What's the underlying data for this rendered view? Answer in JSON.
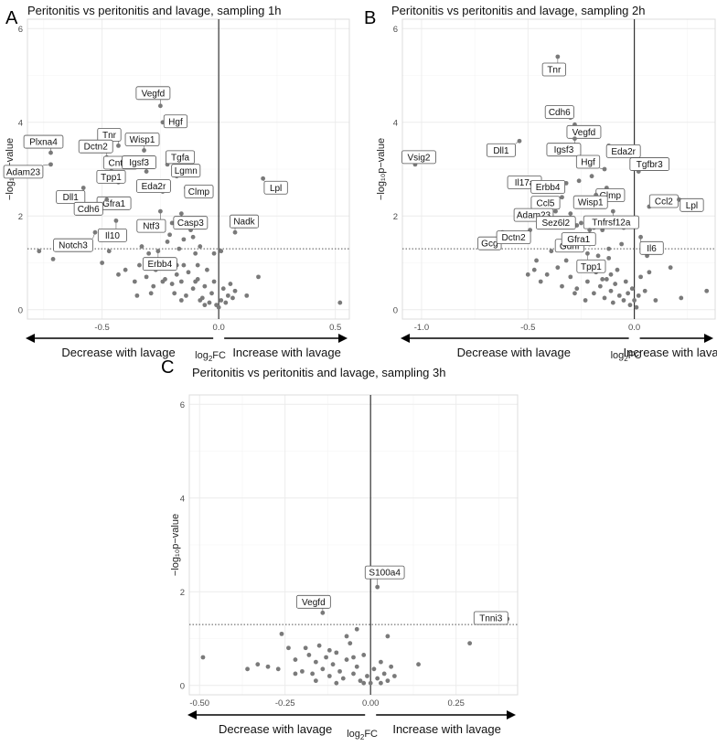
{
  "chart_data": [
    {
      "panel": "A",
      "type": "scatter",
      "title": "Peritonitis vs peritonitis and lavage, sampling 1h",
      "xlabel_main": "log",
      "xlabel_sub": "2",
      "xlabel_tail": "FC",
      "ylabel": "−log₁₀p−value",
      "xlim": [
        -0.82,
        0.56
      ],
      "ylim": [
        -0.2,
        6.2
      ],
      "x_ticks": [
        -0.5,
        0.0,
        0.5
      ],
      "x_tick_labels": [
        "-0.5",
        "0.0",
        "0.5"
      ],
      "y_ticks": [
        0,
        2,
        4,
        6
      ],
      "y_tick_labels": [
        "0",
        "2",
        "4",
        "6"
      ],
      "threshold": 1.3,
      "left_arrow_label": "Decrease with lavage",
      "right_arrow_label": "Increase with lavage",
      "labeled": [
        {
          "name": "Vegfd",
          "x": -0.25,
          "y": 4.35
        },
        {
          "name": "Hgf",
          "x": -0.24,
          "y": 4.0
        },
        {
          "name": "Tnr",
          "x": -0.43,
          "y": 3.5
        },
        {
          "name": "Wisp1",
          "x": -0.32,
          "y": 3.4
        },
        {
          "name": "Plxna4",
          "x": -0.72,
          "y": 3.35
        },
        {
          "name": "Dctn2",
          "x": -0.48,
          "y": 3.25
        },
        {
          "name": "Tgfa",
          "x": -0.22,
          "y": 3.1
        },
        {
          "name": "Adam23",
          "x": -0.72,
          "y": 3.1
        },
        {
          "name": "Cntn4",
          "x": -0.46,
          "y": 3.02
        },
        {
          "name": "Igsf3",
          "x": -0.31,
          "y": 2.95
        },
        {
          "name": "Lgmn",
          "x": -0.18,
          "y": 2.85
        },
        {
          "name": "Lpl",
          "x": 0.19,
          "y": 2.8
        },
        {
          "name": "Tpp1",
          "x": -0.43,
          "y": 2.72
        },
        {
          "name": "Dll1",
          "x": -0.58,
          "y": 2.6
        },
        {
          "name": "Clmp",
          "x": -0.14,
          "y": 2.6
        },
        {
          "name": "Eda2r",
          "x": -0.24,
          "y": 2.52
        },
        {
          "name": "Gfra1",
          "x": -0.41,
          "y": 2.35
        },
        {
          "name": "Cdh6",
          "x": -0.48,
          "y": 2.35
        },
        {
          "name": "Ntf3",
          "x": -0.25,
          "y": 2.1
        },
        {
          "name": "Casp3",
          "x": -0.16,
          "y": 2.05
        },
        {
          "name": "Il10",
          "x": -0.44,
          "y": 1.9
        },
        {
          "name": "Nadk",
          "x": 0.07,
          "y": 1.65
        },
        {
          "name": "Notch3",
          "x": -0.53,
          "y": 1.65
        },
        {
          "name": "Erbb4",
          "x": -0.26,
          "y": 1.25
        }
      ],
      "points": [
        [
          -0.77,
          1.25
        ],
        [
          -0.71,
          1.08
        ],
        [
          -0.5,
          1.0
        ],
        [
          -0.47,
          1.25
        ],
        [
          -0.43,
          0.75
        ],
        [
          -0.4,
          0.85
        ],
        [
          -0.36,
          0.6
        ],
        [
          -0.34,
          0.95
        ],
        [
          -0.31,
          0.7
        ],
        [
          -0.3,
          1.2
        ],
        [
          -0.28,
          0.5
        ],
        [
          -0.27,
          0.85
        ],
        [
          -0.25,
          1.05
        ],
        [
          -0.23,
          0.65
        ],
        [
          -0.22,
          1.45
        ],
        [
          -0.21,
          1.6
        ],
        [
          -0.2,
          0.55
        ],
        [
          -0.19,
          0.35
        ],
        [
          -0.18,
          0.95
        ],
        [
          -0.17,
          1.3
        ],
        [
          -0.16,
          0.6
        ],
        [
          -0.15,
          1.5
        ],
        [
          -0.14,
          0.3
        ],
        [
          -0.13,
          0.8
        ],
        [
          -0.12,
          1.7
        ],
        [
          -0.11,
          0.45
        ],
        [
          -0.1,
          1.2
        ],
        [
          -0.09,
          0.65
        ],
        [
          -0.08,
          1.35
        ],
        [
          -0.07,
          0.25
        ],
        [
          -0.06,
          0.5
        ],
        [
          -0.05,
          0.85
        ],
        [
          -0.04,
          0.15
        ],
        [
          -0.03,
          0.35
        ],
        [
          -0.02,
          0.6
        ],
        [
          -0.01,
          0.1
        ],
        [
          0.0,
          0.05
        ],
        [
          0.01,
          0.2
        ],
        [
          0.02,
          0.45
        ],
        [
          0.03,
          0.15
        ],
        [
          0.04,
          0.3
        ],
        [
          0.05,
          0.55
        ],
        [
          0.06,
          0.25
        ],
        [
          0.07,
          0.4
        ],
        [
          0.12,
          0.3
        ],
        [
          0.17,
          0.7
        ],
        [
          0.52,
          0.15
        ],
        [
          -0.2,
          1.85
        ],
        [
          -0.15,
          0.95
        ],
        [
          -0.13,
          1.95
        ],
        [
          -0.26,
          0.95
        ],
        [
          -0.33,
          1.35
        ],
        [
          -0.11,
          1.55
        ],
        [
          -0.09,
          0.95
        ],
        [
          -0.02,
          1.2
        ],
        [
          0.01,
          1.25
        ],
        [
          -0.24,
          0.6
        ],
        [
          -0.18,
          0.75
        ],
        [
          -0.16,
          0.2
        ],
        [
          -0.1,
          0.6
        ],
        [
          -0.35,
          0.3
        ],
        [
          -0.29,
          0.35
        ],
        [
          -0.06,
          0.1
        ],
        [
          -0.08,
          0.2
        ]
      ]
    },
    {
      "panel": "B",
      "type": "scatter",
      "title": "Peritonitis vs peritonitis and lavage, sampling 2h",
      "xlabel_main": "log",
      "xlabel_sub": "2",
      "xlabel_tail": "FC",
      "ylabel": "−log₁₀p−value",
      "xlim": [
        -1.09,
        0.38
      ],
      "ylim": [
        -0.2,
        6.2
      ],
      "x_ticks": [
        -1.0,
        -0.5,
        0.0
      ],
      "x_tick_labels": [
        "-1.0",
        "-0.5",
        "0.0"
      ],
      "y_ticks": [
        0,
        2,
        4,
        6
      ],
      "y_tick_labels": [
        "0",
        "2",
        "4",
        "6"
      ],
      "threshold": 1.3,
      "left_arrow_label": "Decrease with lavage",
      "right_arrow_label": "Increase with lavage",
      "labeled": [
        {
          "name": "Tnr",
          "x": -0.36,
          "y": 5.4
        },
        {
          "name": "Cdh6",
          "x": -0.3,
          "y": 4.1
        },
        {
          "name": "Vegfd",
          "x": -0.28,
          "y": 3.95
        },
        {
          "name": "Dll1",
          "x": -0.54,
          "y": 3.6
        },
        {
          "name": "Igsf3",
          "x": -0.28,
          "y": 3.65
        },
        {
          "name": "Eda2r",
          "x": -0.12,
          "y": 3.5
        },
        {
          "name": "Vsig2",
          "x": -1.03,
          "y": 3.1
        },
        {
          "name": "Hgf",
          "x": -0.14,
          "y": 3.0
        },
        {
          "name": "Tgfbr3",
          "x": 0.02,
          "y": 2.95
        },
        {
          "name": "Il17a",
          "x": -0.43,
          "y": 2.6
        },
        {
          "name": "Erbb4",
          "x": -0.32,
          "y": 2.7
        },
        {
          "name": "Clmp",
          "x": -0.13,
          "y": 2.6
        },
        {
          "name": "Ccl5",
          "x": -0.34,
          "y": 2.4
        },
        {
          "name": "Wisp1",
          "x": -0.18,
          "y": 2.45
        },
        {
          "name": "Ccl2",
          "x": 0.07,
          "y": 2.2
        },
        {
          "name": "Lpl",
          "x": 0.21,
          "y": 2.35
        },
        {
          "name": "Adam23",
          "x": -0.37,
          "y": 2.1
        },
        {
          "name": "Sez6l2",
          "x": -0.3,
          "y": 2.05
        },
        {
          "name": "Tnfrsf12a",
          "x": -0.1,
          "y": 2.1
        },
        {
          "name": "Gcg",
          "x": -0.62,
          "y": 1.65
        },
        {
          "name": "Dctn2",
          "x": -0.49,
          "y": 1.7
        },
        {
          "name": "Gdnf",
          "x": -0.27,
          "y": 1.6
        },
        {
          "name": "Gfra1",
          "x": -0.21,
          "y": 1.7
        },
        {
          "name": "Il6",
          "x": 0.03,
          "y": 1.55
        },
        {
          "name": "Tpp1",
          "x": -0.22,
          "y": 1.2
        }
      ],
      "points": [
        [
          -0.47,
          0.85
        ],
        [
          -0.44,
          0.6
        ],
        [
          -0.41,
          0.75
        ],
        [
          -0.39,
          1.25
        ],
        [
          -0.36,
          0.9
        ],
        [
          -0.34,
          0.5
        ],
        [
          -0.32,
          1.05
        ],
        [
          -0.3,
          0.7
        ],
        [
          -0.29,
          1.35
        ],
        [
          -0.27,
          0.45
        ],
        [
          -0.25,
          1.85
        ],
        [
          -0.24,
          0.95
        ],
        [
          -0.22,
          0.6
        ],
        [
          -0.21,
          1.4
        ],
        [
          -0.19,
          0.35
        ],
        [
          -0.18,
          0.8
        ],
        [
          -0.17,
          1.15
        ],
        [
          -0.16,
          0.5
        ],
        [
          -0.15,
          1.7
        ],
        [
          -0.14,
          0.25
        ],
        [
          -0.13,
          0.65
        ],
        [
          -0.12,
          1.3
        ],
        [
          -0.11,
          0.4
        ],
        [
          -0.1,
          0.15
        ],
        [
          -0.09,
          0.55
        ],
        [
          -0.08,
          0.85
        ],
        [
          -0.07,
          0.3
        ],
        [
          -0.06,
          1.4
        ],
        [
          -0.05,
          0.2
        ],
        [
          -0.04,
          0.6
        ],
        [
          -0.03,
          0.35
        ],
        [
          -0.02,
          0.1
        ],
        [
          -0.01,
          0.45
        ],
        [
          0.0,
          0.2
        ],
        [
          0.01,
          0.05
        ],
        [
          0.02,
          0.3
        ],
        [
          0.03,
          0.7
        ],
        [
          0.05,
          0.4
        ],
        [
          0.07,
          0.8
        ],
        [
          0.1,
          0.2
        ],
        [
          0.17,
          0.9
        ],
        [
          0.22,
          0.25
        ],
        [
          0.34,
          0.4
        ],
        [
          -0.5,
          0.75
        ],
        [
          -0.46,
          1.05
        ],
        [
          -0.38,
          2.3
        ],
        [
          -0.36,
          2.25
        ],
        [
          -0.26,
          2.75
        ],
        [
          -0.24,
          2.2
        ],
        [
          -0.2,
          2.85
        ],
        [
          -0.16,
          2.3
        ],
        [
          -0.12,
          1.1
        ],
        [
          -0.08,
          1.9
        ],
        [
          -0.27,
          1.8
        ],
        [
          -0.19,
          1.75
        ],
        [
          -0.4,
          2.05
        ],
        [
          -0.23,
          0.2
        ],
        [
          -0.15,
          0.65
        ],
        [
          -0.28,
          0.35
        ],
        [
          -0.11,
          0.75
        ],
        [
          0.06,
          1.15
        ],
        [
          -0.05,
          1.75
        ]
      ]
    },
    {
      "panel": "C",
      "type": "scatter",
      "title": "Peritonitis vs peritonitis and lavage, sampling 3h",
      "xlabel_main": "log",
      "xlabel_sub": "2",
      "xlabel_tail": "FC",
      "ylabel": "−log₁₀p−value",
      "xlim": [
        -0.53,
        0.43
      ],
      "ylim": [
        -0.2,
        6.2
      ],
      "x_ticks": [
        -0.5,
        -0.25,
        0.0,
        0.25
      ],
      "x_tick_labels": [
        "-0.50",
        "-0.25",
        "0.00",
        "0.25"
      ],
      "y_ticks": [
        0,
        2,
        4,
        6
      ],
      "y_tick_labels": [
        "0",
        "2",
        "4",
        "6"
      ],
      "threshold": 1.3,
      "left_arrow_label": "Decrease with lavage",
      "right_arrow_label": "Increase with lavage",
      "labeled": [
        {
          "name": "S100a4",
          "x": 0.02,
          "y": 2.1
        },
        {
          "name": "Vegfd",
          "x": -0.14,
          "y": 1.55
        },
        {
          "name": "Tnni3",
          "x": 0.4,
          "y": 1.42
        }
      ],
      "points": [
        [
          -0.49,
          0.6
        ],
        [
          -0.36,
          0.35
        ],
        [
          -0.33,
          0.45
        ],
        [
          -0.3,
          0.4
        ],
        [
          -0.27,
          0.35
        ],
        [
          -0.24,
          0.8
        ],
        [
          -0.22,
          0.55
        ],
        [
          -0.2,
          0.3
        ],
        [
          -0.18,
          0.65
        ],
        [
          -0.17,
          0.25
        ],
        [
          -0.16,
          0.5
        ],
        [
          -0.15,
          0.85
        ],
        [
          -0.14,
          0.35
        ],
        [
          -0.13,
          0.6
        ],
        [
          -0.12,
          0.2
        ],
        [
          -0.11,
          0.45
        ],
        [
          -0.1,
          0.7
        ],
        [
          -0.09,
          0.3
        ],
        [
          -0.08,
          0.15
        ],
        [
          -0.07,
          0.55
        ],
        [
          -0.06,
          0.9
        ],
        [
          -0.05,
          0.25
        ],
        [
          -0.04,
          0.4
        ],
        [
          -0.03,
          0.1
        ],
        [
          -0.02,
          0.65
        ],
        [
          -0.01,
          0.2
        ],
        [
          0.0,
          0.05
        ],
        [
          0.01,
          0.35
        ],
        [
          0.02,
          0.15
        ],
        [
          0.03,
          0.5
        ],
        [
          0.04,
          0.25
        ],
        [
          0.05,
          0.1
        ],
        [
          0.06,
          0.4
        ],
        [
          0.07,
          0.2
        ],
        [
          0.14,
          0.45
        ],
        [
          0.29,
          0.9
        ],
        [
          0.05,
          1.05
        ],
        [
          -0.04,
          1.2
        ],
        [
          -0.07,
          1.05
        ],
        [
          -0.19,
          0.8
        ],
        [
          -0.12,
          0.75
        ],
        [
          -0.26,
          1.1
        ],
        [
          -0.1,
          0.05
        ],
        [
          -0.02,
          0.05
        ],
        [
          0.03,
          0.05
        ],
        [
          -0.05,
          0.6
        ],
        [
          -0.16,
          0.1
        ],
        [
          -0.22,
          0.25
        ]
      ]
    }
  ]
}
